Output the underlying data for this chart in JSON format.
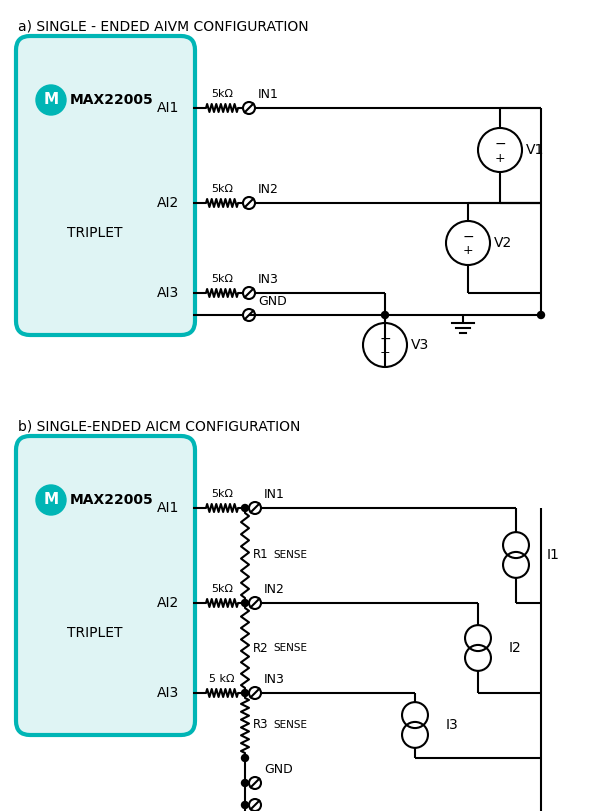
{
  "title_a": "a) SINGLE - ENDED AIVM CONFIGURATION",
  "title_b": "b) SINGLE-ENDED AICM CONFIGURATION",
  "chip_label": "MAX22005",
  "triplet_label": "TRIPLET",
  "ai_labels": [
    "AI1",
    "AI2",
    "AI3"
  ],
  "resistor_label": "5kΩ",
  "in_labels": [
    "IN1",
    "IN2",
    "IN3"
  ],
  "gnd_label": "GND",
  "v_labels": [
    "V1",
    "V2",
    "V3"
  ],
  "i_labels": [
    "I1",
    "I2",
    "I3"
  ],
  "r_labels": [
    "R1",
    "R2",
    "R3"
  ],
  "sense_label": "SENSE",
  "chip_fill": "#dff4f4",
  "chip_border": "#00b5b5",
  "logo_fill": "#00b5b5",
  "line_color": "#000000",
  "bg_color": "#ffffff",
  "figw": 6.0,
  "figh": 8.11,
  "dpi": 100
}
